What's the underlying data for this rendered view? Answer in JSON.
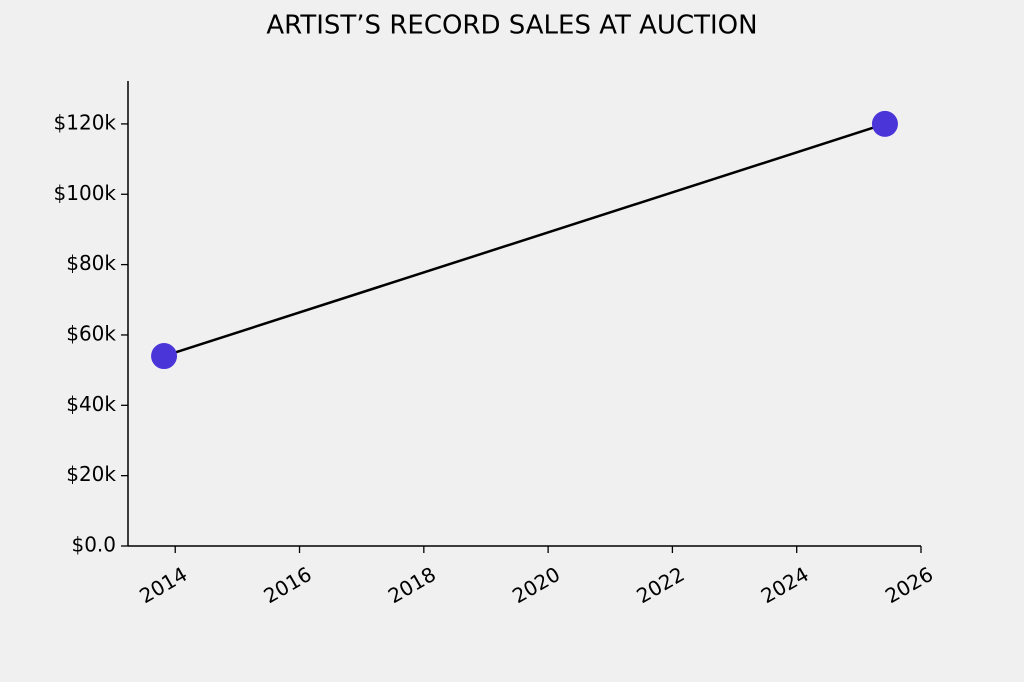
{
  "chart_data": {
    "type": "line",
    "title": "ARTIST’S RECORD SALES AT AUCTION",
    "x": [
      2013.82,
      2025.42
    ],
    "values": [
      54000,
      120000
    ],
    "color": "#4a35d9",
    "line_color": "#000000",
    "xlim": [
      2013.24,
      2026
    ],
    "xticks": [
      2014,
      2016,
      2018,
      2020,
      2022,
      2024,
      2026
    ],
    "ylim": [
      0,
      132200
    ],
    "yticks": [
      {
        "value": 0,
        "label": "$0.0"
      },
      {
        "value": 20000,
        "label": "$20k"
      },
      {
        "value": 40000,
        "label": "$40k"
      },
      {
        "value": 60000,
        "label": "$60k"
      },
      {
        "value": 80000,
        "label": "$80k"
      },
      {
        "value": 100000,
        "label": "$100k"
      },
      {
        "value": 120000,
        "label": "$120k"
      }
    ],
    "grid": false
  }
}
